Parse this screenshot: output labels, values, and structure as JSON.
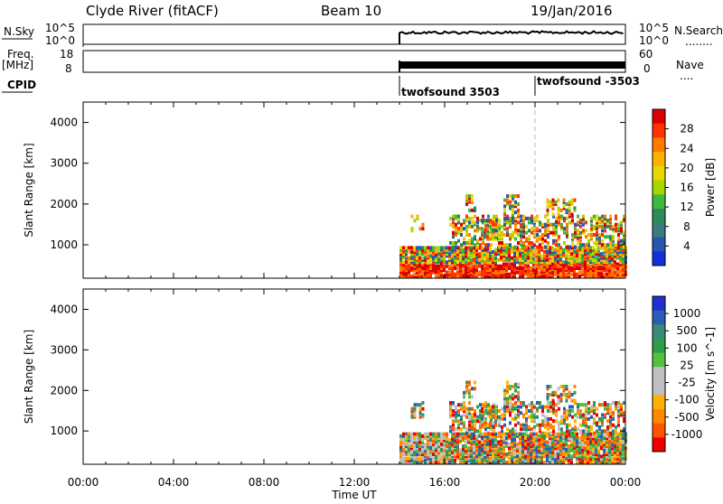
{
  "header": {
    "station": "Clyde River (fitACF)",
    "beam": "Beam 10",
    "date": "19/Jan/2016"
  },
  "nsky_panel": {
    "left_label": "N.Sky",
    "left_ticks": [
      "10^5",
      "10^0"
    ],
    "right_ticks": [
      "10^5",
      "10^0"
    ],
    "right_label": "N.Search",
    "right_marker": "........"
  },
  "freq_panel": {
    "left_label_1": "Freq.",
    "left_label_2": "[MHz]",
    "left_ticks": [
      "18",
      "8"
    ],
    "right_ticks": [
      "60",
      "0"
    ],
    "right_label": "Nave",
    "right_marker": "...."
  },
  "cpid_panel": {
    "label": "CPID",
    "segments": [
      {
        "name": "twofsound 3503",
        "start_hour": 14.0
      },
      {
        "name": "twofsound -3503",
        "start_hour": 20.0
      }
    ]
  },
  "x_axis": {
    "label": "Time UT",
    "ticks": [
      "00:00",
      "04:00",
      "08:00",
      "12:00",
      "16:00",
      "20:00",
      "00:00"
    ],
    "tick_hours": [
      0,
      4,
      8,
      12,
      16,
      20,
      24
    ]
  },
  "power_panel": {
    "ylabel": "Slant Range [km]",
    "yticks": [
      "1000",
      "2000",
      "3000",
      "4000"
    ],
    "colorbar_label": "Power [dB]",
    "colorbar_ticks": [
      "28",
      "24",
      "20",
      "16",
      "12",
      "8",
      "4"
    ],
    "colorbar_colors": [
      "#dd0000",
      "#ff3300",
      "#ff7a00",
      "#ffb300",
      "#e6d800",
      "#a8d400",
      "#3fb83f",
      "#2e8b57",
      "#3a7d7d",
      "#2a55b0",
      "#1030e0"
    ]
  },
  "velocity_panel": {
    "ylabel": "Slant Range [km]",
    "yticks": [
      "1000",
      "2000",
      "3000",
      "4000"
    ],
    "colorbar_label": "Velocity [m s^-1]",
    "colorbar_ticks": [
      "1000",
      "500",
      "100",
      "25",
      "-25",
      "-100",
      "-500",
      "-1000"
    ],
    "colorbar_colors": [
      "#2030d0",
      "#2a5fb5",
      "#3a8a7a",
      "#2e9e4a",
      "#55c040",
      "#c0c0c0",
      "#c0c0c0",
      "#ffb000",
      "#ff8800",
      "#ff5500",
      "#ee0000"
    ]
  },
  "chart_data": [
    {
      "type": "line",
      "title": "Clyde River (fitACF) Beam 10 19/Jan/2016",
      "series": [
        {
          "name": "N.Sky",
          "x": [
            14.0,
            15.0,
            16.0,
            17.0,
            18.0,
            19.0,
            20.0,
            21.0,
            22.0,
            23.0,
            24.0
          ],
          "values": [
            100000,
            100000,
            100000,
            100000,
            100000,
            100000,
            100000,
            100000,
            100000,
            100000,
            100000
          ]
        }
      ],
      "xlabel": "Time UT",
      "xlim": [
        0,
        24
      ]
    },
    {
      "type": "heatmap",
      "ylabel": "Slant Range [km]",
      "xlabel": "Time UT",
      "xlim": [
        0,
        24
      ],
      "ylim": [
        180,
        4500
      ],
      "colorbar": "Power [dB]",
      "colorbar_range": [
        0,
        32
      ],
      "observed_from_hour": 14.0
    },
    {
      "type": "heatmap",
      "ylabel": "Slant Range [km]",
      "xlabel": "Time UT",
      "xlim": [
        0,
        24
      ],
      "ylim": [
        180,
        4500
      ],
      "colorbar": "Velocity [m s^-1]",
      "colorbar_range": [
        -1000,
        1000
      ],
      "observed_from_hour": 14.0
    }
  ]
}
